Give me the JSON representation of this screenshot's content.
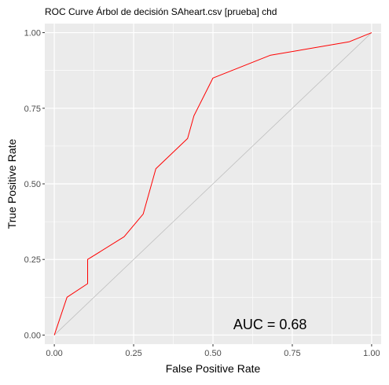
{
  "chart_data": {
    "type": "line",
    "title": "ROC Curve Árbol de decisión SAheart.csv [prueba] chd",
    "xlabel": "False Positive Rate",
    "ylabel": "True Positive Rate",
    "xlim": [
      -0.03,
      1.03
    ],
    "ylim": [
      -0.03,
      1.03
    ],
    "x_ticks": [
      0,
      0.25,
      0.5,
      0.75,
      1
    ],
    "x_tick_labels": [
      "0.00",
      "0.25",
      "0.50",
      "0.75",
      "1.00"
    ],
    "y_ticks": [
      0,
      0.25,
      0.5,
      0.75,
      1
    ],
    "y_tick_labels": [
      "0.00",
      "0.25",
      "0.50",
      "0.75",
      "1.00"
    ],
    "grid": true,
    "panel_color": "#ebebeb",
    "grid_color": "#ffffff",
    "series": [
      {
        "color": "#ff0000",
        "x": [
          0,
          0.04,
          0.105,
          0.105,
          0.22,
          0.28,
          0.32,
          0.42,
          0.44,
          0.5,
          0.68,
          0.93,
          1.0
        ],
        "y": [
          0,
          0.125,
          0.17,
          0.25,
          0.325,
          0.4,
          0.55,
          0.65,
          0.725,
          0.85,
          0.925,
          0.97,
          1.0
        ]
      }
    ],
    "reference_line": {
      "x": [
        0,
        1
      ],
      "y": [
        0,
        1
      ],
      "color": "#bfbfbf"
    },
    "annotation": {
      "text": "AUC = 0.68",
      "x": 0.68,
      "y": 0.02
    }
  }
}
